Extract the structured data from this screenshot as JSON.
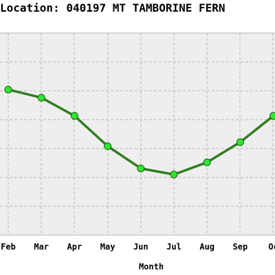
{
  "chart_data": {
    "type": "line",
    "title": "Location: 040197 MT TAMBORINE FERN",
    "xlabel": "Month",
    "ylabel": "",
    "categories": [
      "Feb",
      "Mar",
      "Apr",
      "May",
      "Jun",
      "Jul",
      "Aug",
      "Sep",
      "Oc"
    ],
    "series": [
      {
        "values": [
          25.2,
          24.8,
          23.9,
          22.4,
          21.3,
          21.0,
          21.6,
          22.6,
          23.9
        ]
      }
    ],
    "ylim": [
      18,
      28
    ],
    "grid": true,
    "colors": {
      "background": "#ffffff",
      "plot_background": "#eeeeee",
      "grid": "#b4b4b4",
      "line": "#2e7d1e",
      "marker_fill": "#2ee82e",
      "marker_stroke": "#1a5a10"
    }
  }
}
